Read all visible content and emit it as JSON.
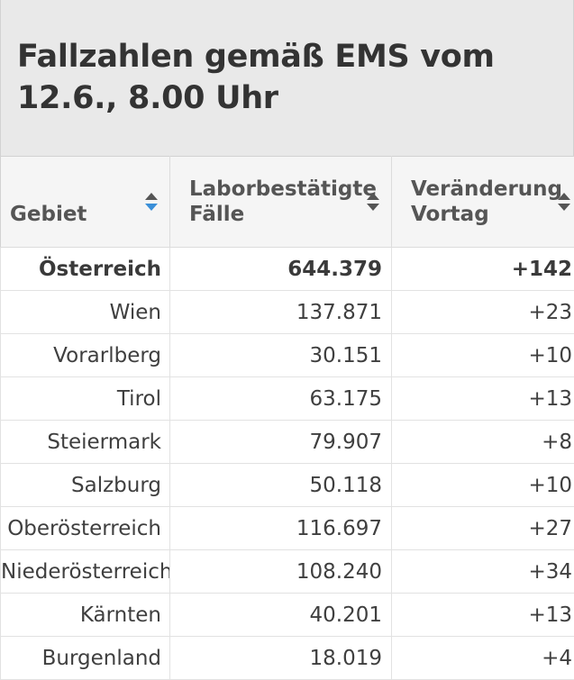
{
  "header": {
    "title": "Fallzahlen gemäß EMS vom 12.6., 8.00 Uhr"
  },
  "table": {
    "columns": [
      {
        "label": "Gebiet",
        "sort_state": "ascending"
      },
      {
        "label": "Laborbestätigte\nFälle",
        "sort_state": "none"
      },
      {
        "label": "Veränderung\nVortag",
        "sort_state": "none"
      }
    ],
    "rows": [
      {
        "gebiet": "Österreich",
        "faelle": "644.379",
        "veraenderung": "+142"
      },
      {
        "gebiet": "Wien",
        "faelle": "137.871",
        "veraenderung": "+23"
      },
      {
        "gebiet": "Vorarlberg",
        "faelle": "30.151",
        "veraenderung": "+10"
      },
      {
        "gebiet": "Tirol",
        "faelle": "63.175",
        "veraenderung": "+13"
      },
      {
        "gebiet": "Steiermark",
        "faelle": "79.907",
        "veraenderung": "+8"
      },
      {
        "gebiet": "Salzburg",
        "faelle": "50.118",
        "veraenderung": "+10"
      },
      {
        "gebiet": "Oberösterreich",
        "faelle": "116.697",
        "veraenderung": "+27"
      },
      {
        "gebiet": "Niederösterreich",
        "faelle": "108.240",
        "veraenderung": "+34"
      },
      {
        "gebiet": "Kärnten",
        "faelle": "40.201",
        "veraenderung": "+13"
      },
      {
        "gebiet": "Burgenland",
        "faelle": "18.019",
        "veraenderung": "+4"
      }
    ]
  },
  "colors": {
    "sort_active": "#3a8fd8",
    "sort_inactive": "#555555",
    "header_bg": "#e9e9e9"
  }
}
